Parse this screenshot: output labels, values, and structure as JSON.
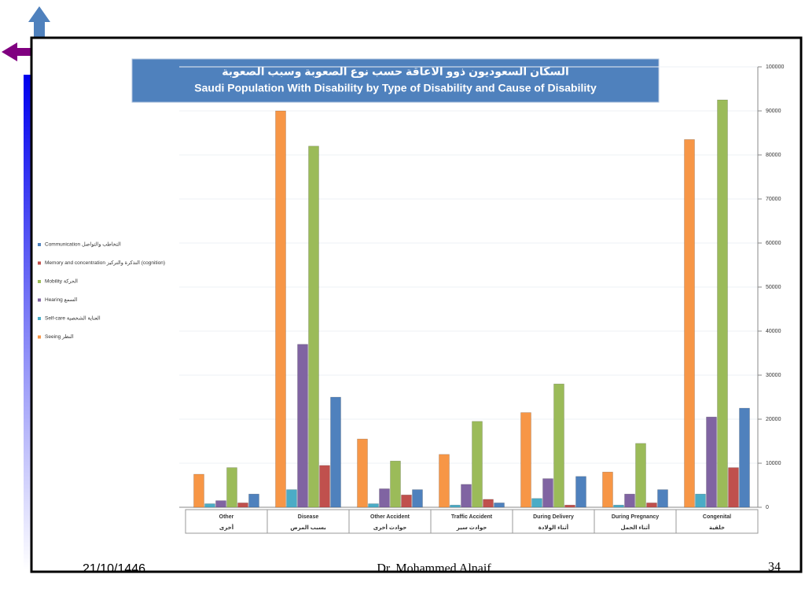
{
  "chart_data": {
    "type": "bar",
    "title": "السكان السعوديون ذوو الاعاقة حسب  نوع الصعوبة وسبب الصعوبة",
    "subtitle": "Saudi Population With Disability by Type of Disability and Cause of Disability",
    "categories": [
      "Other",
      "Disease",
      "Other Accident",
      "Traffic Accident",
      "During Delivery",
      "During Pregnancy",
      "Congenital"
    ],
    "categories_ar": [
      "أخرى",
      "بسبب المرض",
      "حوادث أخرى",
      "حوادث سير",
      "أثناء الولادة",
      "أثناء الحمل",
      "خلقية"
    ],
    "series": [
      {
        "name": "Seeing النظر",
        "color": "#f79646",
        "values": [
          7500,
          90000,
          15500,
          12000,
          21500,
          8000,
          83500
        ]
      },
      {
        "name": "Self-care العناية الشخصية",
        "color": "#4bacc6",
        "values": [
          800,
          4000,
          800,
          500,
          2000,
          500,
          3000
        ]
      },
      {
        "name": "Hearing السمع",
        "color": "#8064a2",
        "values": [
          1500,
          37000,
          4200,
          5200,
          6500,
          3000,
          20500
        ]
      },
      {
        "name": "Mobility الحركة",
        "color": "#9bbb59",
        "values": [
          9000,
          82000,
          10500,
          19500,
          28000,
          14500,
          92500
        ]
      },
      {
        "name": "Memory and concentration التذكرة والتركيز (cognition)",
        "color": "#c0504d",
        "values": [
          1000,
          9500,
          2800,
          1800,
          500,
          1000,
          9000
        ]
      },
      {
        "name": "Communication التخاطب والتواصل",
        "color": "#4f81bd",
        "values": [
          3000,
          25000,
          4000,
          1000,
          7000,
          4000,
          22500
        ]
      }
    ],
    "ylim": [
      0,
      100000
    ],
    "yticks": [
      0,
      10000,
      20000,
      30000,
      40000,
      50000,
      60000,
      70000,
      80000,
      90000,
      100000
    ],
    "grid": true
  },
  "footer": {
    "date": "21/10/1446",
    "author": "Dr. Mohammed Alnaif",
    "page": "34"
  }
}
